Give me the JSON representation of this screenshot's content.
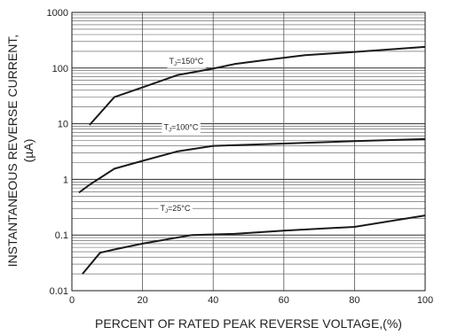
{
  "chart_data": {
    "type": "line",
    "xlabel": "PERCENT OF RATED PEAK REVERSE VOLTAGE,(%)",
    "ylabel_line1": "INSTANTANEOUS REVERSE CURRENT,",
    "ylabel_line2": "(µA)",
    "xlim": [
      0,
      100
    ],
    "ylim": [
      0.01,
      1000
    ],
    "y_scale": "log",
    "grid": true,
    "x_ticks": [
      {
        "value": 0,
        "label": "0"
      },
      {
        "value": 20,
        "label": "20"
      },
      {
        "value": 40,
        "label": "40"
      },
      {
        "value": 60,
        "label": "60"
      },
      {
        "value": 80,
        "label": "80"
      },
      {
        "value": 100,
        "label": "100"
      }
    ],
    "y_ticks": [
      {
        "value": 0.01,
        "label": "0.01"
      },
      {
        "value": 0.1,
        "label": "0.1"
      },
      {
        "value": 1,
        "label": "1"
      },
      {
        "value": 10,
        "label": "10"
      },
      {
        "value": 100,
        "label": "100"
      },
      {
        "value": 1000,
        "label": "1000"
      }
    ],
    "series": [
      {
        "name": "TJ=150°C",
        "name_main": "T",
        "name_sub": "J",
        "name_rest": "=150°C",
        "label_at": [
          27.5,
          120
        ],
        "x": [
          5,
          12,
          20,
          30,
          40,
          46,
          55,
          66,
          80,
          100
        ],
        "y": [
          9.5,
          30,
          45,
          75,
          98,
          118,
          140,
          170,
          195,
          240
        ]
      },
      {
        "name": "TJ=100°C",
        "name_main": "T",
        "name_sub": "J",
        "name_rest": "=100°C",
        "label_at": [
          26,
          7.8
        ],
        "x": [
          2,
          5,
          12,
          20,
          30,
          40,
          60,
          80,
          100
        ],
        "y": [
          0.58,
          0.8,
          1.55,
          2.15,
          3.2,
          4.0,
          4.4,
          4.85,
          5.3
        ]
      },
      {
        "name": "TJ=25°C",
        "name_main": "T",
        "name_sub": "J",
        "name_rest": "=25°C",
        "label_at": [
          25,
          0.27
        ],
        "x": [
          3,
          8,
          12,
          20,
          34,
          46,
          60,
          80,
          100
        ],
        "y": [
          0.02,
          0.048,
          0.055,
          0.07,
          0.1,
          0.105,
          0.12,
          0.14,
          0.225
        ]
      }
    ]
  }
}
